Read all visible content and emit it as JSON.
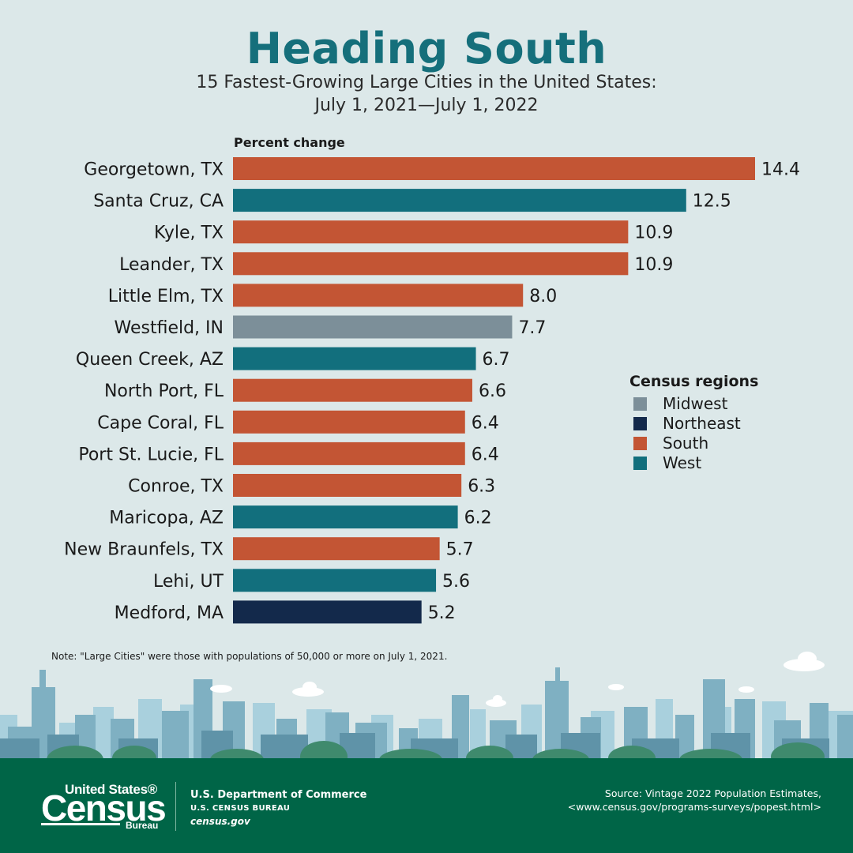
{
  "header": {
    "title": "Heading South",
    "subtitle_line1": "15 Fastest-Growing Large Cities in the United States:",
    "subtitle_line2": "July 1, 2021—July 1, 2022"
  },
  "chart_data": {
    "type": "bar",
    "orientation": "horizontal",
    "axis_label": "Percent change",
    "categories": [
      "Georgetown, TX",
      "Santa Cruz, CA",
      "Kyle, TX",
      "Leander, TX",
      "Little Elm, TX",
      "Westfield, IN",
      "Queen Creek, AZ",
      "North Port, FL",
      "Cape Coral, FL",
      "Port St. Lucie, FL",
      "Conroe, TX",
      "Maricopa, AZ",
      "New Braunfels, TX",
      "Lehi, UT",
      "Medford, MA"
    ],
    "values": [
      14.4,
      12.5,
      10.9,
      10.9,
      8.0,
      7.7,
      6.7,
      6.6,
      6.4,
      6.4,
      6.3,
      6.2,
      5.7,
      5.6,
      5.2
    ],
    "value_labels": [
      "14.4",
      "12.5",
      "10.9",
      "10.9",
      "8.0",
      "7.7",
      "6.7",
      "6.6",
      "6.4",
      "6.4",
      "6.3",
      "6.2",
      "5.7",
      "5.6",
      "5.2"
    ],
    "regions": [
      "South",
      "West",
      "South",
      "South",
      "South",
      "Midwest",
      "West",
      "South",
      "South",
      "South",
      "South",
      "West",
      "South",
      "West",
      "Northeast"
    ],
    "xlim": [
      0,
      14.4
    ],
    "legend_placement": "right",
    "legend": {
      "title": "Census regions",
      "entries": [
        {
          "name": "Midwest",
          "color": "#7c8f99"
        },
        {
          "name": "Northeast",
          "color": "#13294b"
        },
        {
          "name": "South",
          "color": "#c35534"
        },
        {
          "name": "West",
          "color": "#126f7d"
        }
      ]
    }
  },
  "note": "Note: \"Large Cities\" were those with populations of 50,000 or more on July 1, 2021.",
  "footer": {
    "logo_line1": "United States®",
    "logo_line2": "Census",
    "logo_line3": "Bureau",
    "dept_name": "U.S. Department of Commerce",
    "dept_bureau": "U.S. CENSUS BUREAU",
    "dept_url": "census.gov",
    "source_line1": "Source: Vintage 2022 Population Estimates,",
    "source_line2": "<www.census.gov/programs-surveys/popest.html>"
  },
  "colors": {
    "background": "#dce8e9",
    "title": "#156f7b",
    "footer": "#006547"
  }
}
